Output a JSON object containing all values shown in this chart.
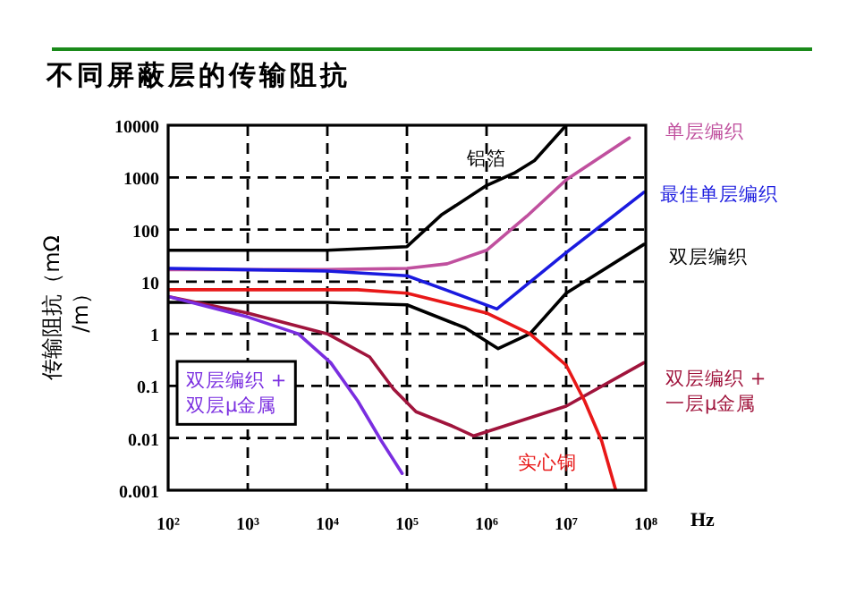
{
  "chart_data": {
    "type": "line",
    "title": "不同屏蔽层的传输阻抗",
    "xlabel": "Hz",
    "ylabel": "传输阻抗（mΩ\n/m）",
    "log": "xy",
    "grid": true,
    "xlim": [
      100,
      100000000
    ],
    "ylim": [
      0.001,
      10000
    ],
    "xticks": [
      {
        "value": 100,
        "label": "10²"
      },
      {
        "value": 1000,
        "label": "10³"
      },
      {
        "value": 10000,
        "label": "10⁴"
      },
      {
        "value": 100000,
        "label": "10⁵"
      },
      {
        "value": 1000000,
        "label": "10⁶"
      },
      {
        "value": 10000000,
        "label": "10⁷"
      },
      {
        "value": 100000000,
        "label": "10⁸"
      }
    ],
    "yticks": [
      0.001,
      0.01,
      0.1,
      1,
      10,
      100,
      1000,
      10000
    ],
    "series": [
      {
        "name": "铝箔",
        "color": "#000000",
        "x": [
          100,
          10000,
          100000,
          270000,
          1000000,
          2200000,
          4000000,
          10000000
        ],
        "values": [
          40,
          40,
          47,
          190,
          700,
          1200,
          2100,
          10000
        ]
      },
      {
        "name": "单层编织",
        "color": "#c0509e",
        "x": [
          100,
          10000,
          100000,
          320000,
          1000000,
          3200000,
          10000000,
          62000000
        ],
        "values": [
          17,
          17,
          18,
          22,
          40,
          180,
          900,
          5700
        ]
      },
      {
        "name": "最佳单层编织",
        "color": "#1a1adf",
        "x": [
          100,
          10000,
          100000,
          320000,
          1350000,
          10000000,
          95000000
        ],
        "values": [
          18,
          16,
          13,
          6.8,
          3,
          36,
          520
        ]
      },
      {
        "name": "双层编织",
        "color": "#000000",
        "x": [
          100,
          10000,
          100000,
          540000,
          1400000,
          3500000,
          10000000,
          95000000
        ],
        "values": [
          4,
          4,
          3.6,
          1.3,
          0.52,
          1,
          6,
          52
        ]
      },
      {
        "name": "双层编织 +\n一层μ金属",
        "color": "#a0143c",
        "x": [
          100,
          1000,
          10000,
          34000,
          68000,
          130000,
          370000,
          690000,
          10000000,
          95000000
        ],
        "values": [
          5.2,
          2.5,
          1,
          0.36,
          0.087,
          0.032,
          0.017,
          0.011,
          0.041,
          0.28
        ]
      },
      {
        "name": "实心铜",
        "color": "#e81818",
        "x": [
          100,
          24000,
          100000,
          1000000,
          3500000,
          10000000,
          17000000,
          28000000,
          42000000
        ],
        "values": [
          7,
          7,
          6,
          2.5,
          1,
          0.25,
          0.052,
          0.0087,
          0.001
        ]
      },
      {
        "name": "双层编织 +\n双层μ金属",
        "color": "#7a2ee0",
        "x": [
          100,
          1000,
          4300,
          11000,
          24000,
          48000,
          87000
        ],
        "values": [
          5.2,
          2.1,
          1,
          0.28,
          0.052,
          0.0087,
          0.0021
        ]
      }
    ]
  }
}
